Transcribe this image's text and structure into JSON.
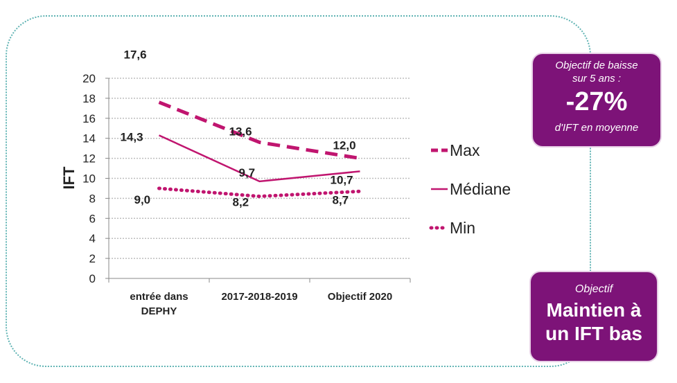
{
  "chart_data": {
    "type": "line",
    "categories": [
      "entrée dans DEPHY",
      "2017-2018-2019",
      "Objectif 2020"
    ],
    "category_lines": [
      [
        "entrée dans",
        "DEPHY"
      ],
      [
        "2017-2018-2019"
      ],
      [
        "Objectif 2020"
      ]
    ],
    "series": [
      {
        "name": "Max",
        "values": [
          17.6,
          13.6,
          12.0
        ],
        "labels": [
          "17,6",
          "13,6",
          "12,0"
        ],
        "style": "dashed",
        "color": "#c0156f"
      },
      {
        "name": "Médiane",
        "values": [
          14.3,
          9.7,
          10.7
        ],
        "labels": [
          "14,3",
          "9,7",
          "10,7"
        ],
        "style": "solid",
        "color": "#c0156f"
      },
      {
        "name": "Min",
        "values": [
          9.0,
          8.2,
          8.7
        ],
        "labels": [
          "9,0",
          "8,2",
          "8,7"
        ],
        "style": "dotted",
        "color": "#c0156f"
      }
    ],
    "ylabel": "IFT",
    "ylim": [
      0,
      20
    ],
    "yticks": [
      0,
      2,
      4,
      6,
      8,
      10,
      12,
      14,
      16,
      18,
      20
    ],
    "grid": true,
    "legend": "right"
  },
  "box_reduction": {
    "top_line1": "Objectif de baisse",
    "top_line2": "sur 5 ans :",
    "value": "-27%",
    "bottom": "d'IFT en moyenne"
  },
  "box_objective": {
    "top": "Objectif",
    "line1": "Maintien à",
    "line2": "un IFT bas"
  },
  "colors": {
    "accent": "#c0156f",
    "box": "#7d1378",
    "frame": "#5fb3b3"
  }
}
